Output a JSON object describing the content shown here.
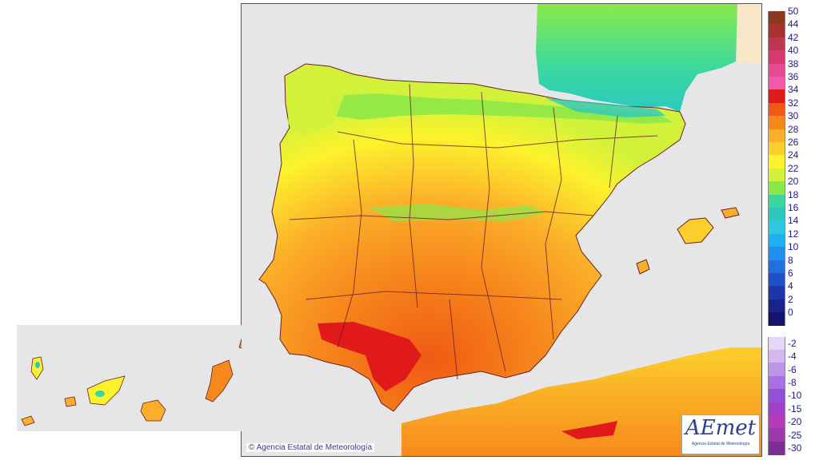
{
  "map": {
    "credit_text": "Agencia Estatal de Meteorología",
    "logo_text": "AEmet",
    "logo_subtext": "Agencia Estatal de Meteorología"
  },
  "legend": {
    "positive": [
      {
        "label": "50",
        "color": "#8b3a1f"
      },
      {
        "label": "44",
        "color": "#a8322e"
      },
      {
        "label": "42",
        "color": "#c03550"
      },
      {
        "label": "40",
        "color": "#d83a6e"
      },
      {
        "label": "38",
        "color": "#e84a94"
      },
      {
        "label": "36",
        "color": "#f05aa8"
      },
      {
        "label": "34",
        "color": "#e01a1a"
      },
      {
        "label": "32",
        "color": "#f05a14"
      },
      {
        "label": "30",
        "color": "#f7881c"
      },
      {
        "label": "28",
        "color": "#fbae2a"
      },
      {
        "label": "26",
        "color": "#fccf2c"
      },
      {
        "label": "24",
        "color": "#fdf22c"
      },
      {
        "label": "22",
        "color": "#d2f23a"
      },
      {
        "label": "20",
        "color": "#8ae84a"
      },
      {
        "label": "18",
        "color": "#3ad8a0"
      },
      {
        "label": "16",
        "color": "#2cc8c0"
      },
      {
        "label": "14",
        "color": "#2cc8e0"
      },
      {
        "label": "12",
        "color": "#1eb0f0"
      },
      {
        "label": "10",
        "color": "#1e90f0"
      },
      {
        "label": "8",
        "color": "#2070e0"
      },
      {
        "label": "6",
        "color": "#2050c8"
      },
      {
        "label": "4",
        "color": "#1e36a8"
      },
      {
        "label": "2",
        "color": "#1a2488"
      },
      {
        "label": "0",
        "color": "#14146a"
      }
    ],
    "negative": [
      {
        "label": "-2",
        "color": "#e4d6f4"
      },
      {
        "label": "-4",
        "color": "#d2b8ee"
      },
      {
        "label": "-6",
        "color": "#bc96e6"
      },
      {
        "label": "-8",
        "color": "#a870e0"
      },
      {
        "label": "-10",
        "color": "#9050d8"
      },
      {
        "label": "-15",
        "color": "#a040c8"
      },
      {
        "label": "-20",
        "color": "#b83ab8"
      },
      {
        "label": "-25",
        "color": "#9a3aa8"
      },
      {
        "label": "-30",
        "color": "#7a3090"
      }
    ]
  }
}
